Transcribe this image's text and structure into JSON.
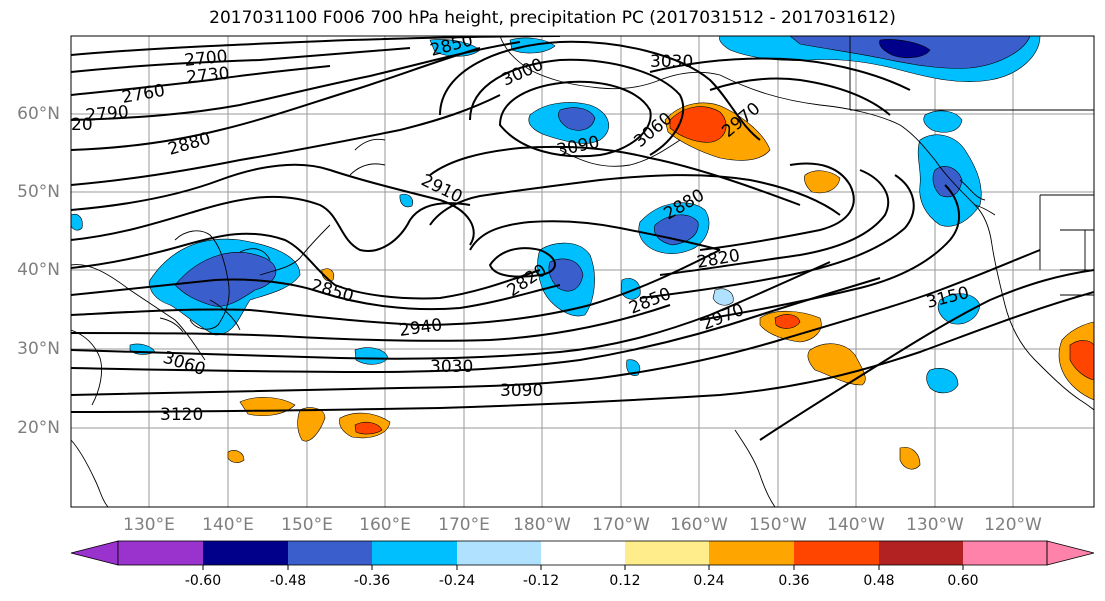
{
  "title": "2017031100 F006 700 hPa height, precipitation PC (2017031512 - 2017031612)",
  "lat_labels": [
    "60°N",
    "50°N",
    "40°N",
    "30°N",
    "20°N"
  ],
  "lon_labels": [
    "130°E",
    "140°E",
    "150°E",
    "160°E",
    "170°E",
    "180°W",
    "170°W",
    "160°W",
    "150°W",
    "140°W",
    "130°W",
    "120°W"
  ],
  "contour_labels": [
    "2700",
    "2730",
    "2760",
    "2790",
    "20",
    "2880",
    "2910",
    "2850",
    "2940",
    "3030",
    "3060",
    "3090",
    "3120",
    "2820",
    "2850",
    "2970",
    "3090",
    "3000",
    "3030",
    "3060",
    "2970",
    "2880",
    "2820",
    "3150",
    "2850"
  ],
  "colorbar": {
    "colors": [
      "#9a32cd",
      "#00008b",
      "#3a5fcd",
      "#00bfff",
      "#b0e2ff",
      "#ffffff",
      "#ffec8b",
      "#ffa500",
      "#ff4500",
      "#b22222",
      "#ff82ab"
    ],
    "tick_labels": [
      "-0.60",
      "-0.48",
      "-0.36",
      "-0.24",
      "-0.12",
      "0.12",
      "0.24",
      "0.36",
      "0.48",
      "0.60"
    ]
  }
}
